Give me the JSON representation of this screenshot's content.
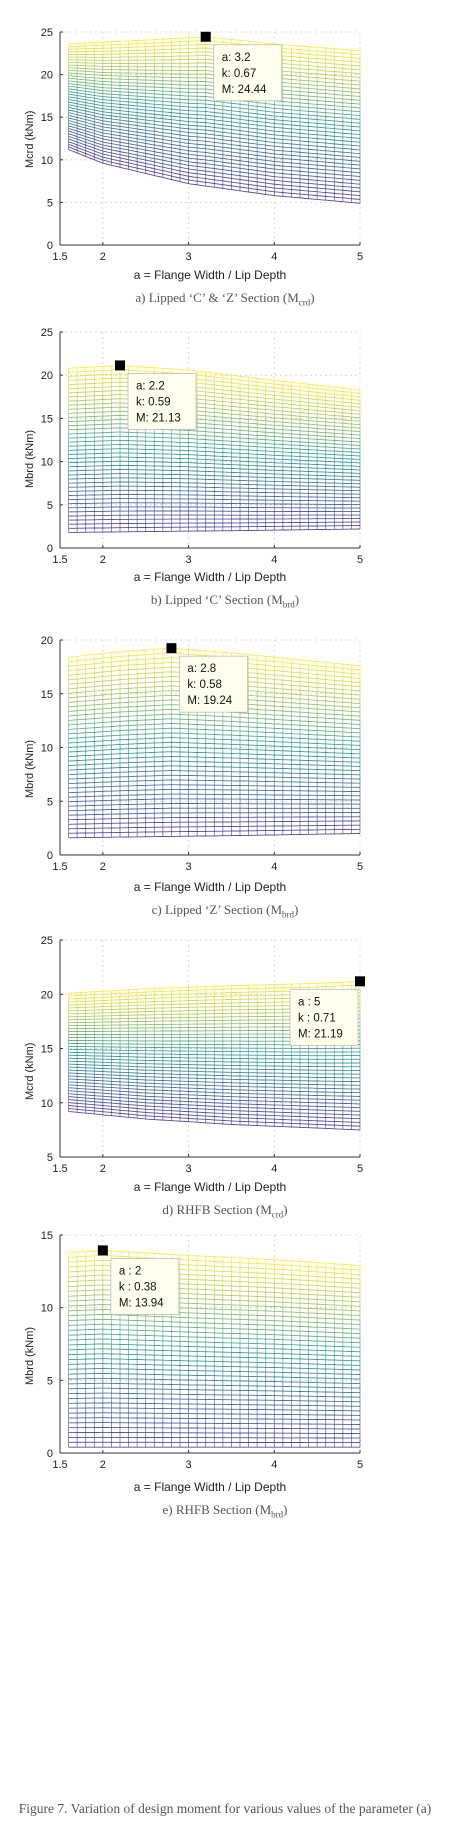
{
  "figure_caption": "Figure 7. Variation of design moment for various values of the parameter (a)",
  "colors": {
    "top": "#fde725",
    "mid": "#21918c",
    "bottom": "#3b2b8f",
    "axis": "#333333",
    "grid": "#cfcfcf"
  },
  "chart_data": [
    {
      "type": "line",
      "caption": "a) Lipped ‘C’ & ‘Z’ Section (M",
      "caption_sub": "crd",
      "caption_end": ")",
      "xlabel": "a = Flange Width / Lip Depth",
      "ylabel": "Mcrd (kNm)",
      "xlim": [
        1.5,
        5
      ],
      "ylim": [
        0,
        25
      ],
      "xticks": [
        "1.5",
        "2",
        "3",
        "4",
        "5"
      ],
      "yticks": [
        "0",
        "5",
        "10",
        "15",
        "20",
        "25"
      ],
      "ytick_values": [
        0,
        5,
        10,
        15,
        20,
        25
      ],
      "grid": true,
      "surface_top": {
        "x": [
          1.6,
          2.4,
          3.2,
          4.0,
          5.0
        ],
        "y": [
          23.6,
          24.0,
          24.44,
          23.6,
          22.8
        ]
      },
      "surface_bottom": {
        "x": [
          1.6,
          2.0,
          3.0,
          4.0,
          5.0
        ],
        "y": [
          11.2,
          9.6,
          7.2,
          5.8,
          4.9
        ]
      },
      "marker": {
        "x": 3.2,
        "y": 24.44
      },
      "datatip": {
        "line1": "a: 3.2",
        "line2": "k: 0.67",
        "line3": "M: 24.44"
      }
    },
    {
      "type": "line",
      "caption": "b) Lipped ‘C’ Section (M",
      "caption_sub": "brd",
      "caption_end": ")",
      "xlabel": "a = Flange Width / Lip Depth",
      "ylabel": "Mbrd (kNm)",
      "xlim": [
        1.5,
        5
      ],
      "ylim": [
        0,
        25
      ],
      "xticks": [
        "1.5",
        "2",
        "3",
        "4",
        "5"
      ],
      "yticks": [
        "0",
        "5",
        "10",
        "15",
        "20",
        "25"
      ],
      "ytick_values": [
        0,
        5,
        10,
        15,
        20,
        25
      ],
      "grid": true,
      "surface_top": {
        "x": [
          1.6,
          2.2,
          3.0,
          4.0,
          5.0
        ],
        "y": [
          20.8,
          21.13,
          20.6,
          19.4,
          18.3
        ]
      },
      "surface_bottom": {
        "x": [
          1.6,
          2.5,
          3.5,
          5.0
        ],
        "y": [
          1.8,
          1.9,
          2.0,
          2.2
        ]
      },
      "marker": {
        "x": 2.2,
        "y": 21.13
      },
      "datatip": {
        "line1": "a: 2.2",
        "line2": "k: 0.59",
        "line3": "M: 21.13"
      }
    },
    {
      "type": "line",
      "caption": "c) Lipped ‘Z’ Section (M",
      "caption_sub": "brd",
      "caption_end": ")",
      "xlabel": "a = Flange Width / Lip Depth",
      "ylabel": "Mbrd (kNm)",
      "xlim": [
        1.5,
        5
      ],
      "ylim": [
        0,
        20
      ],
      "xticks": [
        "1.5",
        "2",
        "3",
        "4",
        "5"
      ],
      "yticks": [
        "0",
        "5",
        "10",
        "15",
        "20"
      ],
      "ytick_values": [
        0,
        5,
        10,
        15,
        20
      ],
      "grid": true,
      "surface_top": {
        "x": [
          1.6,
          2.2,
          2.8,
          3.5,
          5.0
        ],
        "y": [
          18.4,
          18.9,
          19.24,
          18.8,
          17.6
        ]
      },
      "surface_bottom": {
        "x": [
          1.6,
          2.5,
          3.5,
          5.0
        ],
        "y": [
          1.6,
          1.7,
          1.8,
          2.0
        ]
      },
      "marker": {
        "x": 2.8,
        "y": 19.24
      },
      "datatip": {
        "line1": "a: 2.8",
        "line2": "k: 0.58",
        "line3": "M: 19.24"
      }
    },
    {
      "type": "line",
      "caption": "d) RHFB Section (M",
      "caption_sub": "crd",
      "caption_end": ")",
      "xlabel": "a = Flange Width / Lip Depth",
      "ylabel": "Mcrd (kNm)",
      "xlim": [
        1.5,
        5
      ],
      "ylim": [
        5,
        25
      ],
      "xticks": [
        "1.5",
        "2",
        "3",
        "4",
        "5"
      ],
      "yticks": [
        "5",
        "10",
        "15",
        "20",
        "25"
      ],
      "ytick_values": [
        5,
        10,
        15,
        20,
        25
      ],
      "grid": true,
      "surface_top": {
        "x": [
          1.6,
          2.5,
          3.5,
          4.5,
          5.0
        ],
        "y": [
          20.1,
          20.5,
          20.8,
          21.0,
          21.19
        ]
      },
      "surface_bottom": {
        "x": [
          1.6,
          2.5,
          3.5,
          5.0
        ],
        "y": [
          9.2,
          8.5,
          8.0,
          7.5
        ]
      },
      "marker": {
        "x": 5.0,
        "y": 21.19
      },
      "datatip": {
        "line1": "a : 5",
        "line2": "k : 0.71",
        "line3": "M: 21.19"
      }
    },
    {
      "type": "line",
      "caption": "e) RHFB Section (M",
      "caption_sub": "brd",
      "caption_end": ")",
      "xlabel": "a = Flange Width / Lip Depth",
      "ylabel": "Mbrd (kNm)",
      "xlim": [
        1.5,
        5
      ],
      "ylim": [
        0,
        15
      ],
      "xticks": [
        "1.5",
        "2",
        "3",
        "4",
        "5"
      ],
      "yticks": [
        "0",
        "5",
        "10",
        "15"
      ],
      "ytick_values": [
        0,
        5,
        10,
        15
      ],
      "grid": true,
      "surface_top": {
        "x": [
          1.6,
          2.0,
          3.0,
          4.0,
          5.0
        ],
        "y": [
          13.8,
          13.94,
          13.6,
          13.3,
          12.9
        ]
      },
      "surface_bottom": {
        "x": [
          1.6,
          3.0,
          5.0
        ],
        "y": [
          0.4,
          0.4,
          0.4
        ]
      },
      "marker": {
        "x": 2.0,
        "y": 13.94
      },
      "datatip": {
        "line1": "a : 2",
        "line2": "k : 0.38",
        "line3": "M: 13.94"
      }
    }
  ]
}
